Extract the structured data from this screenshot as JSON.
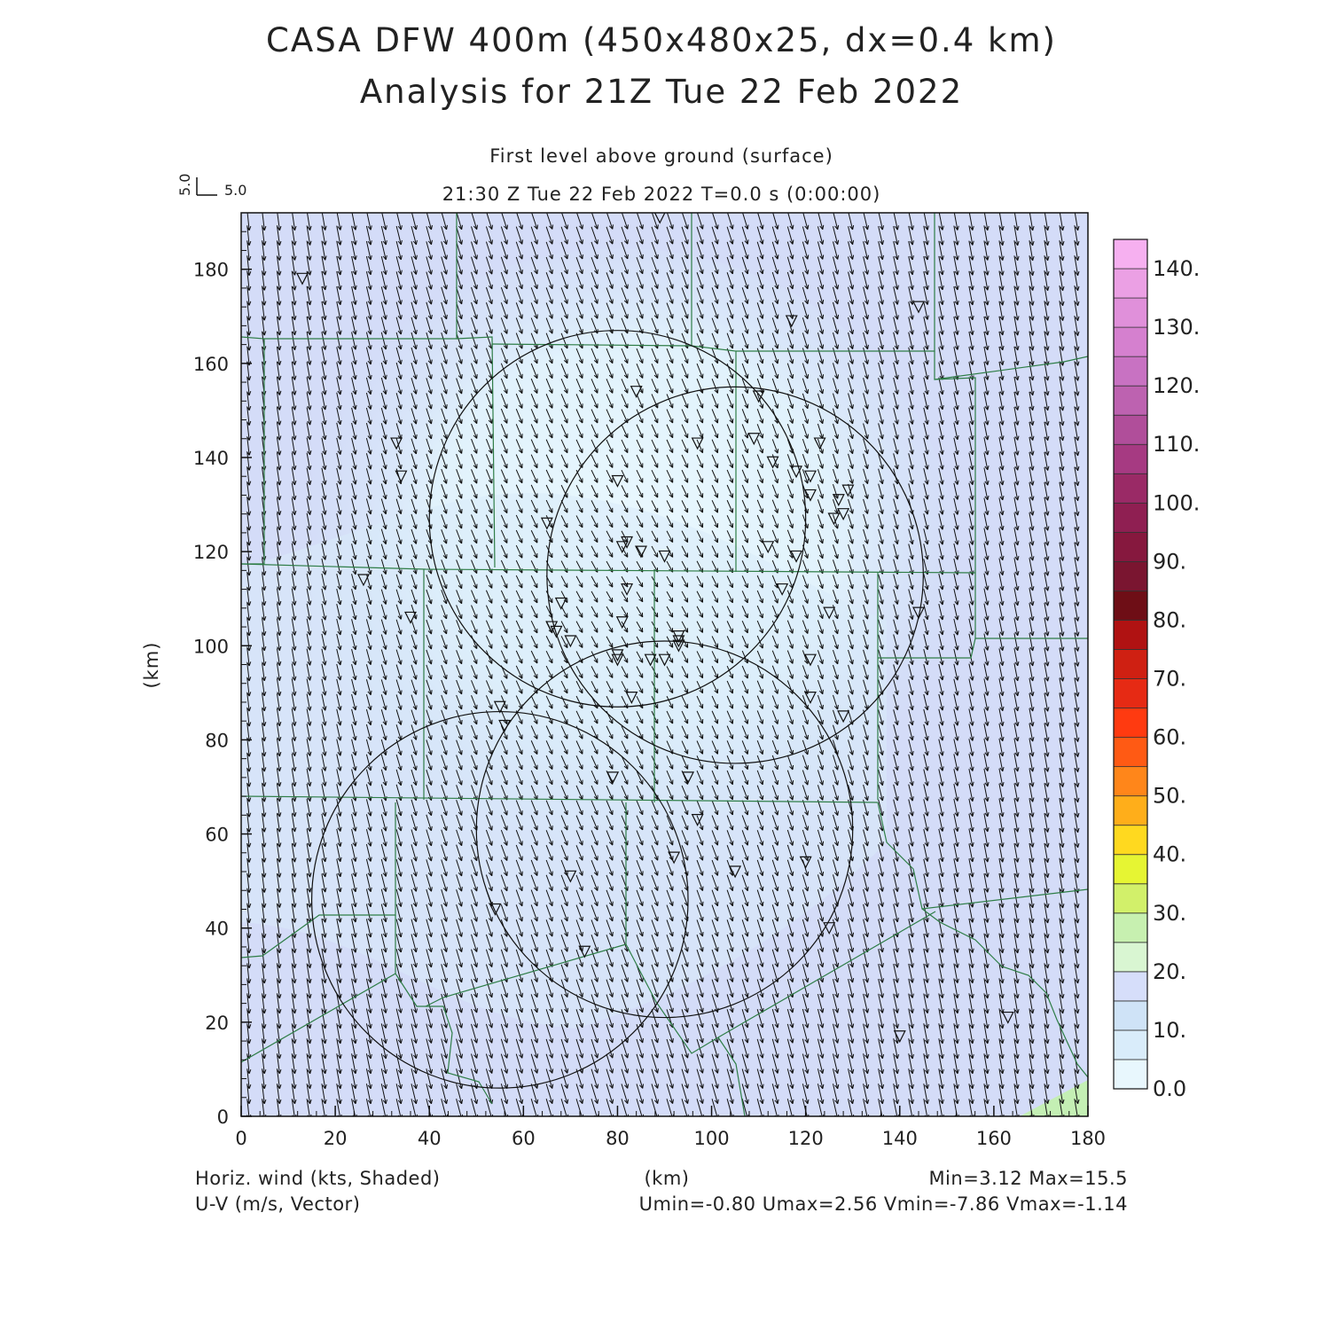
{
  "header": {
    "title_line1": "CASA DFW 400m (450x480x25, dx=0.4 km)",
    "title_line2": "Analysis for 21Z Tue 22 Feb 2022",
    "level": "First level above ground (surface)",
    "time": "21:30 Z Tue 22 Feb 2022    T=0.0 s (0:00:00)",
    "vector_ref_v": "5.0",
    "vector_ref_u": "5.0"
  },
  "chart_data": {
    "type": "heatmap",
    "xlabel": "(km)",
    "ylabel": "(km)",
    "xlim": [
      0,
      180
    ],
    "ylim": [
      0,
      192
    ],
    "xticks": [
      "0",
      "20",
      "40",
      "60",
      "80",
      "100",
      "120",
      "140",
      "160",
      "180"
    ],
    "yticks": [
      "0",
      "20",
      "40",
      "60",
      "80",
      "100",
      "120",
      "140",
      "160",
      "180"
    ],
    "colorbar": {
      "labels": [
        "0.0",
        "10.",
        "20.",
        "30.",
        "40.",
        "50.",
        "60.",
        "70.",
        "80.",
        "90.",
        "100.",
        "110.",
        "120.",
        "130.",
        "140."
      ],
      "colors": [
        "#e8f7fd",
        "#d9ecfa",
        "#cfe3f7",
        "#d6defa",
        "#d9f6d2",
        "#c7f0b0",
        "#d2f06a",
        "#e6f533",
        "#ffd91f",
        "#ffae1a",
        "#ff861a",
        "#ff5a14",
        "#ff3a10",
        "#e62a14",
        "#cf2012",
        "#b01212",
        "#6e0e16",
        "#7a1530",
        "#86183e",
        "#8f1f52",
        "#9a2a66",
        "#a63a82",
        "#b04e9a",
        "#bd62b0",
        "#c872c2",
        "#d580cf",
        "#e090da",
        "#eba0e4",
        "#f6b0f0"
      ]
    },
    "field": "Horiz. wind (kts, Shaded)",
    "vectors": "U-V (m/s, Vector)",
    "field_min": 3.12,
    "field_max": 15.5,
    "u_min": -0.8,
    "u_max": 2.56,
    "v_min": -7.86,
    "v_max": -1.14,
    "radars": [
      {
        "x": 80,
        "y": 127,
        "r": 40
      },
      {
        "x": 105,
        "y": 115,
        "r": 40
      },
      {
        "x": 90,
        "y": 61,
        "r": 40
      },
      {
        "x": 55,
        "y": 46,
        "r": 40
      }
    ],
    "stations": [
      [
        13,
        178
      ],
      [
        89,
        191
      ],
      [
        117,
        169
      ],
      [
        144,
        172
      ],
      [
        84,
        154
      ],
      [
        33,
        143
      ],
      [
        34,
        136
      ],
      [
        110,
        153
      ],
      [
        109,
        144
      ],
      [
        97,
        143
      ],
      [
        113,
        139
      ],
      [
        118,
        137
      ],
      [
        121,
        136
      ],
      [
        123,
        143
      ],
      [
        80,
        135
      ],
      [
        65,
        126
      ],
      [
        121,
        132
      ],
      [
        127,
        131
      ],
      [
        128,
        128
      ],
      [
        126,
        127
      ],
      [
        129,
        133
      ],
      [
        81,
        121
      ],
      [
        82,
        122
      ],
      [
        85,
        120
      ],
      [
        90,
        119
      ],
      [
        112,
        121
      ],
      [
        118,
        119
      ],
      [
        26,
        114
      ],
      [
        36,
        106
      ],
      [
        82,
        112
      ],
      [
        115,
        112
      ],
      [
        125,
        107
      ],
      [
        68,
        109
      ],
      [
        66,
        104
      ],
      [
        67,
        103
      ],
      [
        70,
        101
      ],
      [
        81,
        105
      ],
      [
        93,
        102
      ],
      [
        93,
        101
      ],
      [
        93,
        100
      ],
      [
        90,
        97
      ],
      [
        87,
        97
      ],
      [
        80,
        97
      ],
      [
        80,
        98
      ],
      [
        121,
        97
      ],
      [
        83,
        89
      ],
      [
        121,
        89
      ],
      [
        128,
        85
      ],
      [
        55,
        87
      ],
      [
        56,
        83
      ],
      [
        79,
        72
      ],
      [
        95,
        72
      ],
      [
        97,
        63
      ],
      [
        70,
        51
      ],
      [
        92,
        55
      ],
      [
        105,
        52
      ],
      [
        120,
        54
      ],
      [
        54,
        44
      ],
      [
        125,
        40
      ],
      [
        73,
        35
      ],
      [
        140,
        17
      ],
      [
        163,
        21
      ],
      [
        144,
        107
      ]
    ]
  },
  "footer": {
    "left1": "Horiz. wind (kts, Shaded)",
    "left2": "U-V (m/s, Vector)",
    "center": "(km)",
    "right1": "Min=3.12 Max=15.5",
    "right2": "Umin=-0.80 Umax=2.56 Vmin=-7.86 Vmax=-1.14"
  }
}
